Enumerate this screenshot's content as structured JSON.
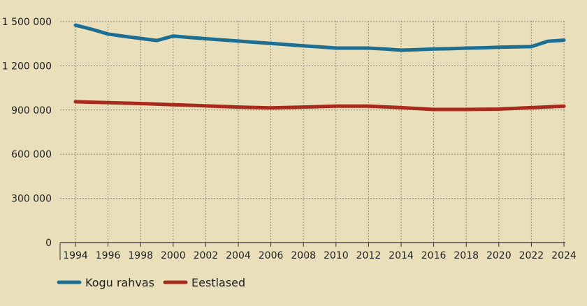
{
  "chart_data": {
    "type": "line",
    "title": "",
    "xlabel": "",
    "ylabel": "",
    "xlim": [
      1994,
      2024
    ],
    "ylim": [
      0,
      1500000
    ],
    "x_ticks": [
      "1994",
      "1996",
      "1998",
      "2000",
      "2002",
      "2004",
      "2006",
      "2008",
      "2010",
      "2012",
      "2014",
      "2016",
      "2018",
      "2020",
      "2022",
      "2024"
    ],
    "y_ticks": [
      {
        "value": 0,
        "label": "0"
      },
      {
        "value": 300000,
        "label": "300 000"
      },
      {
        "value": 600000,
        "label": "600 000"
      },
      {
        "value": 900000,
        "label": "900 000"
      },
      {
        "value": 1200000,
        "label": "1 200 000"
      },
      {
        "value": 1500000,
        "label": "1 500 000"
      }
    ],
    "grid": true,
    "legend_position": "bottom-left",
    "series": [
      {
        "name": "Kogu rahvas",
        "color": "#1c6e93",
        "x": [
          1994,
          1995,
          1996,
          1997,
          1998,
          1999,
          2000,
          2001,
          2002,
          2003,
          2004,
          2005,
          2006,
          2007,
          2008,
          2009,
          2010,
          2011,
          2012,
          2013,
          2014,
          2015,
          2016,
          2017,
          2018,
          2019,
          2020,
          2021,
          2022,
          2023,
          2024
        ],
        "values": [
          1476000,
          1448000,
          1416000,
          1400000,
          1386000,
          1372000,
          1402000,
          1392000,
          1384000,
          1376000,
          1368000,
          1360000,
          1352000,
          1344000,
          1336000,
          1328000,
          1320000,
          1320000,
          1320000,
          1314000,
          1306000,
          1310000,
          1314000,
          1316000,
          1320000,
          1322000,
          1326000,
          1328000,
          1330000,
          1366000,
          1374000
        ]
      },
      {
        "name": "Eestlased",
        "color": "#a82a1d",
        "x": [
          1994,
          1996,
          1998,
          2000,
          2002,
          2004,
          2006,
          2008,
          2010,
          2012,
          2014,
          2016,
          2018,
          2020,
          2022,
          2024
        ],
        "values": [
          956000,
          950000,
          944000,
          936000,
          928000,
          920000,
          914000,
          920000,
          926000,
          926000,
          916000,
          904000,
          904000,
          906000,
          916000,
          926000
        ]
      }
    ]
  }
}
